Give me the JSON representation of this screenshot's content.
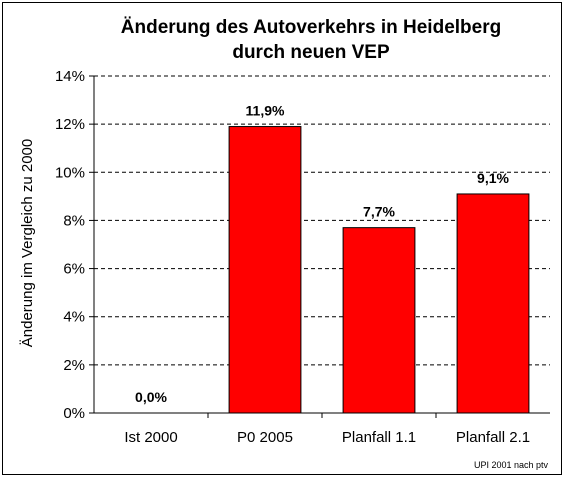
{
  "chart_data": {
    "type": "bar",
    "title_lines": [
      "Änderung des Autoverkehrs in Heidelberg",
      "durch neuen VEP"
    ],
    "xlabel": "",
    "ylabel": "Änderung im Vergleich zu 2000",
    "categories": [
      "Ist 2000",
      "P0 2005",
      "Planfall 1.1",
      "Planfall 2.1"
    ],
    "values": [
      0.0,
      11.9,
      7.7,
      9.1
    ],
    "data_labels": [
      "0,0%",
      "11,9%",
      "7,7%",
      "9,1%"
    ],
    "ylim": [
      0,
      14
    ],
    "y_ticks": [
      0,
      2,
      4,
      6,
      8,
      10,
      12,
      14
    ],
    "y_tick_labels": [
      "0%",
      "2%",
      "4%",
      "6%",
      "8%",
      "10%",
      "12%",
      "14%"
    ],
    "grid": "horizontal dashed",
    "legend": "none",
    "bar_color": "#ff0000",
    "source_note": "UPI 2001 nach ptv"
  }
}
